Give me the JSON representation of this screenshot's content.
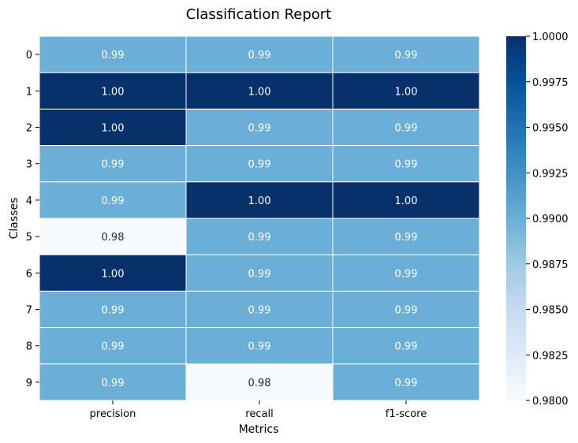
{
  "chart_data": {
    "type": "heatmap",
    "title": "Classification Report",
    "xlabel": "Metrics",
    "ylabel": "Classes",
    "columns": [
      "precision",
      "recall",
      "f1-score"
    ],
    "rows": [
      "0",
      "1",
      "2",
      "3",
      "4",
      "5",
      "6",
      "7",
      "8",
      "9"
    ],
    "values": [
      [
        0.99,
        0.99,
        0.99
      ],
      [
        1.0,
        1.0,
        1.0
      ],
      [
        1.0,
        0.99,
        0.99
      ],
      [
        0.99,
        0.99,
        0.99
      ],
      [
        0.99,
        1.0,
        1.0
      ],
      [
        0.98,
        0.99,
        0.99
      ],
      [
        1.0,
        0.99,
        0.99
      ],
      [
        0.99,
        0.99,
        0.99
      ],
      [
        0.99,
        0.99,
        0.99
      ],
      [
        0.99,
        0.98,
        0.99
      ]
    ],
    "annotation_format": "2 decimals",
    "colormap": "Blues",
    "color_range": [
      0.98,
      1.0
    ],
    "colorbar_ticks": [
      "1.0000",
      "0.9975",
      "0.9950",
      "0.9925",
      "0.9900",
      "0.9875",
      "0.9850",
      "0.9825",
      "0.9800"
    ],
    "colorbar_tick_values": [
      1.0,
      0.9975,
      0.995,
      0.9925,
      0.99,
      0.9875,
      0.985,
      0.9825,
      0.98
    ],
    "cell_colors": {
      "0.98": "#f7fbff",
      "0.99": "#6baed6",
      "1.00": "#08306b"
    },
    "grid_line_color": "#ffffff"
  }
}
